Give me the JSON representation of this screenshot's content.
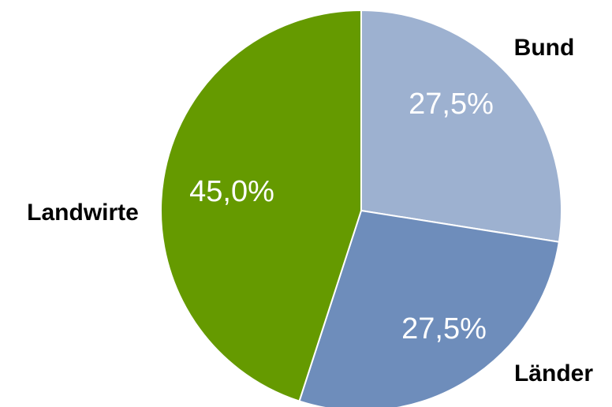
{
  "chart_data": {
    "type": "pie",
    "categories": [
      "Bund",
      "Länder",
      "Landwirte"
    ],
    "values": [
      27.5,
      27.5,
      45.0
    ],
    "value_labels": [
      "27,5%",
      "27,5%",
      "45,0%"
    ],
    "colors": [
      "#9db1d0",
      "#6e8dbb",
      "#659a00"
    ],
    "title": "",
    "start": "12 o'clock",
    "direction": "clockwise",
    "legend": "none"
  }
}
